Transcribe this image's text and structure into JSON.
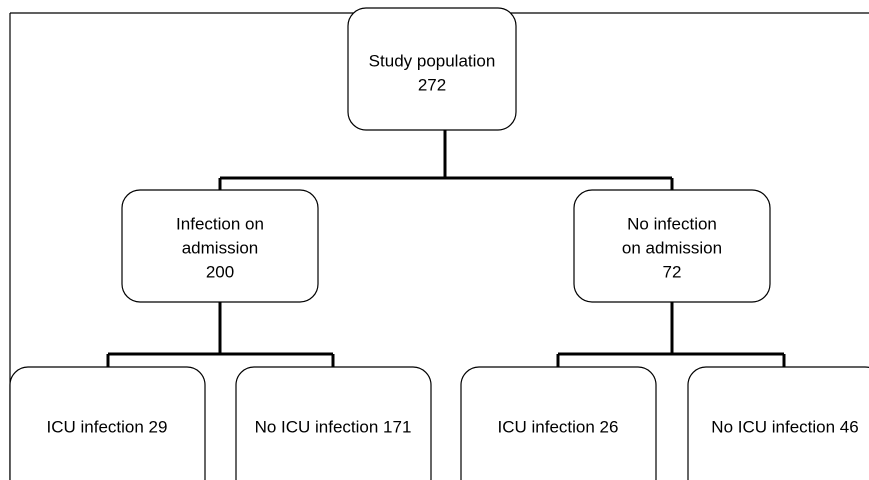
{
  "nodes": [
    {
      "lines": [
        "Study population",
        "272"
      ]
    },
    {
      "lines": [
        "Infection on",
        "admission",
        "200"
      ]
    },
    {
      "lines": [
        "No infection",
        "on admission",
        "72"
      ]
    },
    {
      "lines": [
        "ICU infection 29"
      ]
    },
    {
      "lines": [
        "No ICU infection 171"
      ]
    },
    {
      "lines": [
        "ICU infection 26"
      ]
    },
    {
      "lines": [
        "No ICU infection 46"
      ]
    }
  ]
}
